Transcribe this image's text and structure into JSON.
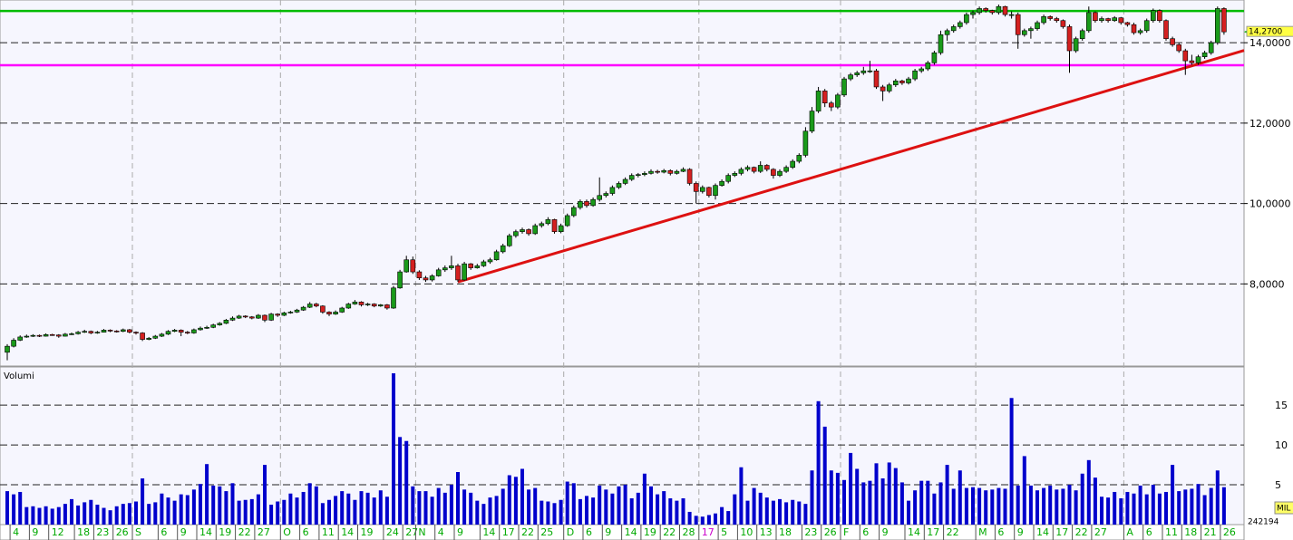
{
  "chart_data": {
    "type": "candlestick",
    "up_color": "#1a9a1a",
    "down_color": "#d42020",
    "ylim": [
      5.98,
      14.95
    ],
    "yticks": [
      {
        "value": 8,
        "label": "8,0000"
      },
      {
        "value": 10,
        "label": "10,0000"
      },
      {
        "value": 12,
        "label": "12,0000"
      },
      {
        "value": 14,
        "label": "14,0000"
      }
    ],
    "grid": true,
    "last_price": {
      "value": 14.27,
      "label": "14,2700"
    },
    "hlines": [
      {
        "value": 14.79,
        "color": "#00bb00"
      },
      {
        "value": 13.44,
        "color": "#ff00ff"
      }
    ],
    "trendline": {
      "color": "#dd1111",
      "from": {
        "index": 70,
        "value": 8.05
      },
      "to": {
        "index": 189,
        "value": 13.66
      }
    },
    "month_marks": [
      20,
      43,
      64,
      87,
      108,
      130,
      151,
      174
    ],
    "year_mark": 108,
    "label_color": "#00aa00",
    "year_color": "#cc00cc",
    "categories": [
      null,
      "4",
      null,
      null,
      "9",
      null,
      null,
      "12",
      null,
      null,
      null,
      "18",
      null,
      null,
      "23",
      null,
      null,
      "26",
      null,
      null,
      "S",
      null,
      null,
      null,
      "6",
      null,
      null,
      "9",
      null,
      null,
      "14",
      null,
      null,
      "19",
      null,
      null,
      "22",
      null,
      null,
      "27",
      null,
      null,
      null,
      "O",
      null,
      null,
      "6",
      null,
      null,
      "11",
      null,
      null,
      "14",
      null,
      null,
      "19",
      null,
      null,
      null,
      "24",
      null,
      null,
      "27",
      null,
      "N",
      null,
      null,
      "4",
      null,
      null,
      "9",
      null,
      null,
      null,
      "14",
      null,
      null,
      "17",
      null,
      null,
      "22",
      null,
      null,
      "25",
      null,
      null,
      null,
      "D",
      null,
      null,
      "6",
      null,
      null,
      "9",
      null,
      null,
      "14",
      null,
      null,
      "19",
      null,
      null,
      "22",
      null,
      null,
      "28",
      null,
      null,
      "17",
      null,
      null,
      "5",
      null,
      null,
      "10",
      null,
      null,
      "13",
      null,
      null,
      "18",
      null,
      null,
      null,
      "23",
      null,
      null,
      "26",
      null,
      null,
      "F",
      null,
      null,
      "6",
      null,
      null,
      "9",
      null,
      null,
      null,
      "14",
      null,
      null,
      "17",
      null,
      null,
      "22",
      null,
      null,
      null,
      null,
      "M",
      null,
      null,
      "6",
      null,
      null,
      "9",
      null,
      null,
      "14",
      null,
      null,
      "17",
      null,
      null,
      "22",
      null,
      null,
      "27",
      null,
      null,
      null,
      null,
      "A",
      null,
      null,
      "6",
      null,
      null,
      "11",
      null,
      null,
      "18",
      null,
      null,
      "21",
      null,
      null,
      "26"
    ],
    "candles": [
      [
        6.3,
        6.5,
        6.1,
        6.45
      ],
      [
        6.45,
        6.65,
        6.42,
        6.6
      ],
      [
        6.6,
        6.72,
        6.58,
        6.68
      ],
      [
        6.68,
        6.74,
        6.66,
        6.7
      ],
      [
        6.7,
        6.75,
        6.68,
        6.72
      ],
      [
        6.72,
        6.74,
        6.68,
        6.7
      ],
      [
        6.7,
        6.77,
        6.69,
        6.74
      ],
      [
        6.74,
        6.76,
        6.71,
        6.73
      ],
      [
        6.73,
        6.75,
        6.66,
        6.7
      ],
      [
        6.7,
        6.78,
        6.69,
        6.75
      ],
      [
        6.75,
        6.79,
        6.73,
        6.76
      ],
      [
        6.76,
        6.83,
        6.74,
        6.8
      ],
      [
        6.8,
        6.86,
        6.78,
        6.82
      ],
      [
        6.82,
        6.84,
        6.75,
        6.78
      ],
      [
        6.78,
        6.83,
        6.76,
        6.8
      ],
      [
        6.8,
        6.88,
        6.79,
        6.85
      ],
      [
        6.85,
        6.87,
        6.8,
        6.83
      ],
      [
        6.83,
        6.85,
        6.79,
        6.82
      ],
      [
        6.82,
        6.89,
        6.8,
        6.86
      ],
      [
        6.86,
        6.88,
        6.77,
        6.8
      ],
      [
        6.8,
        6.82,
        6.74,
        6.78
      ],
      [
        6.78,
        6.8,
        6.58,
        6.62
      ],
      [
        6.62,
        6.68,
        6.6,
        6.65
      ],
      [
        6.65,
        6.73,
        6.63,
        6.7
      ],
      [
        6.7,
        6.78,
        6.68,
        6.75
      ],
      [
        6.75,
        6.85,
        6.73,
        6.82
      ],
      [
        6.82,
        6.88,
        6.8,
        6.85
      ],
      [
        6.85,
        6.87,
        6.7,
        6.8
      ],
      [
        6.8,
        6.83,
        6.75,
        6.78
      ],
      [
        6.78,
        6.89,
        6.76,
        6.86
      ],
      [
        6.86,
        6.94,
        6.84,
        6.9
      ],
      [
        6.9,
        6.96,
        6.88,
        6.92
      ],
      [
        6.92,
        7.01,
        6.9,
        6.98
      ],
      [
        6.98,
        7.05,
        6.96,
        7.02
      ],
      [
        7.02,
        7.13,
        7.0,
        7.1
      ],
      [
        7.1,
        7.19,
        7.08,
        7.15
      ],
      [
        7.15,
        7.23,
        7.13,
        7.2
      ],
      [
        7.2,
        7.22,
        7.15,
        7.18
      ],
      [
        7.18,
        7.2,
        7.12,
        7.15
      ],
      [
        7.15,
        7.25,
        7.13,
        7.22
      ],
      [
        7.22,
        7.24,
        7.05,
        7.1
      ],
      [
        7.1,
        7.28,
        7.08,
        7.25
      ],
      [
        7.25,
        7.27,
        7.18,
        7.22
      ],
      [
        7.22,
        7.31,
        7.2,
        7.28
      ],
      [
        7.28,
        7.33,
        7.26,
        7.3
      ],
      [
        7.3,
        7.38,
        7.28,
        7.35
      ],
      [
        7.35,
        7.45,
        7.33,
        7.42
      ],
      [
        7.42,
        7.55,
        7.4,
        7.5
      ],
      [
        7.5,
        7.53,
        7.42,
        7.45
      ],
      [
        7.45,
        7.47,
        7.26,
        7.3
      ],
      [
        7.3,
        7.32,
        7.2,
        7.25
      ],
      [
        7.25,
        7.34,
        7.23,
        7.3
      ],
      [
        7.3,
        7.43,
        7.28,
        7.4
      ],
      [
        7.4,
        7.53,
        7.38,
        7.5
      ],
      [
        7.5,
        7.6,
        7.48,
        7.55
      ],
      [
        7.55,
        7.57,
        7.44,
        7.48
      ],
      [
        7.48,
        7.53,
        7.45,
        7.5
      ],
      [
        7.5,
        7.52,
        7.42,
        7.45
      ],
      [
        7.45,
        7.5,
        7.43,
        7.48
      ],
      [
        7.48,
        7.5,
        7.36,
        7.4
      ],
      [
        7.4,
        7.95,
        7.38,
        7.9
      ],
      [
        7.9,
        8.35,
        7.88,
        8.3
      ],
      [
        8.3,
        8.7,
        8.28,
        8.6
      ],
      [
        8.6,
        8.68,
        8.25,
        8.3
      ],
      [
        8.3,
        8.34,
        8.1,
        8.15
      ],
      [
        8.15,
        8.2,
        8.05,
        8.1
      ],
      [
        8.1,
        8.24,
        8.06,
        8.2
      ],
      [
        8.2,
        8.4,
        8.18,
        8.35
      ],
      [
        8.35,
        8.46,
        8.3,
        8.4
      ],
      [
        8.4,
        8.7,
        8.35,
        8.45
      ],
      [
        8.45,
        8.5,
        8.05,
        8.1
      ],
      [
        8.1,
        8.55,
        8.08,
        8.5
      ],
      [
        8.5,
        8.52,
        8.35,
        8.4
      ],
      [
        8.4,
        8.5,
        8.38,
        8.45
      ],
      [
        8.45,
        8.6,
        8.42,
        8.55
      ],
      [
        8.55,
        8.65,
        8.5,
        8.6
      ],
      [
        8.6,
        8.85,
        8.58,
        8.8
      ],
      [
        8.8,
        9.0,
        8.76,
        8.95
      ],
      [
        8.95,
        9.25,
        8.92,
        9.2
      ],
      [
        9.2,
        9.35,
        9.15,
        9.3
      ],
      [
        9.3,
        9.4,
        9.25,
        9.35
      ],
      [
        9.35,
        9.38,
        9.2,
        9.25
      ],
      [
        9.25,
        9.5,
        9.22,
        9.45
      ],
      [
        9.45,
        9.55,
        9.4,
        9.5
      ],
      [
        9.5,
        9.66,
        9.46,
        9.6
      ],
      [
        9.6,
        9.62,
        9.25,
        9.3
      ],
      [
        9.3,
        9.5,
        9.26,
        9.45
      ],
      [
        9.45,
        9.75,
        9.42,
        9.7
      ],
      [
        9.7,
        9.95,
        9.66,
        9.9
      ],
      [
        9.9,
        10.1,
        9.85,
        10.05
      ],
      [
        10.05,
        10.1,
        9.9,
        9.95
      ],
      [
        9.95,
        10.15,
        9.92,
        10.1
      ],
      [
        10.1,
        10.65,
        10.05,
        10.2
      ],
      [
        10.2,
        10.3,
        10.15,
        10.25
      ],
      [
        10.25,
        10.45,
        10.2,
        10.4
      ],
      [
        10.4,
        10.55,
        10.36,
        10.5
      ],
      [
        10.5,
        10.65,
        10.46,
        10.6
      ],
      [
        10.6,
        10.75,
        10.56,
        10.7
      ],
      [
        10.7,
        10.76,
        10.65,
        10.72
      ],
      [
        10.72,
        10.8,
        10.68,
        10.75
      ],
      [
        10.75,
        10.85,
        10.72,
        10.8
      ],
      [
        10.8,
        10.84,
        10.74,
        10.78
      ],
      [
        10.78,
        10.86,
        10.75,
        10.82
      ],
      [
        10.82,
        10.85,
        10.7,
        10.75
      ],
      [
        10.75,
        10.84,
        10.72,
        10.8
      ],
      [
        10.8,
        10.9,
        10.78,
        10.85
      ],
      [
        10.85,
        10.88,
        10.45,
        10.5
      ],
      [
        10.5,
        10.55,
        10.0,
        10.3
      ],
      [
        10.3,
        10.45,
        10.25,
        10.4
      ],
      [
        10.4,
        10.42,
        10.15,
        10.2
      ],
      [
        10.2,
        10.5,
        10.1,
        10.45
      ],
      [
        10.45,
        10.6,
        10.42,
        10.55
      ],
      [
        10.55,
        10.75,
        10.5,
        10.7
      ],
      [
        10.7,
        10.8,
        10.66,
        10.75
      ],
      [
        10.75,
        10.9,
        10.7,
        10.85
      ],
      [
        10.85,
        10.95,
        10.8,
        10.9
      ],
      [
        10.9,
        10.92,
        10.75,
        10.8
      ],
      [
        10.8,
        11.05,
        10.76,
        10.95
      ],
      [
        10.95,
        10.98,
        10.8,
        10.85
      ],
      [
        10.85,
        10.88,
        10.62,
        10.7
      ],
      [
        10.7,
        10.85,
        10.66,
        10.8
      ],
      [
        10.8,
        10.95,
        10.76,
        10.9
      ],
      [
        10.9,
        11.1,
        10.86,
        11.05
      ],
      [
        11.05,
        11.25,
        11.0,
        11.2
      ],
      [
        11.2,
        11.9,
        11.15,
        11.8
      ],
      [
        11.8,
        12.4,
        11.75,
        12.3
      ],
      [
        12.3,
        12.9,
        12.25,
        12.8
      ],
      [
        12.8,
        12.85,
        12.4,
        12.5
      ],
      [
        12.5,
        12.55,
        12.3,
        12.4
      ],
      [
        12.4,
        12.75,
        12.35,
        12.7
      ],
      [
        12.7,
        13.15,
        12.65,
        13.1
      ],
      [
        13.1,
        13.25,
        13.05,
        13.2
      ],
      [
        13.2,
        13.3,
        13.15,
        13.25
      ],
      [
        13.25,
        13.4,
        13.2,
        13.3
      ],
      [
        13.3,
        13.55,
        13.25,
        13.3
      ],
      [
        13.3,
        13.35,
        12.85,
        12.9
      ],
      [
        12.9,
        12.95,
        12.55,
        12.8
      ],
      [
        12.8,
        13.0,
        12.75,
        12.95
      ],
      [
        12.95,
        13.1,
        12.9,
        13.05
      ],
      [
        13.05,
        13.08,
        12.95,
        13.0
      ],
      [
        13.0,
        13.15,
        12.96,
        13.1
      ],
      [
        13.1,
        13.35,
        13.05,
        13.3
      ],
      [
        13.3,
        13.4,
        13.25,
        13.35
      ],
      [
        13.35,
        13.55,
        13.3,
        13.5
      ],
      [
        13.5,
        13.8,
        13.45,
        13.75
      ],
      [
        13.75,
        14.3,
        13.7,
        14.2
      ],
      [
        14.2,
        14.35,
        14.05,
        14.3
      ],
      [
        14.3,
        14.45,
        14.25,
        14.4
      ],
      [
        14.4,
        14.55,
        14.35,
        14.5
      ],
      [
        14.5,
        14.75,
        14.45,
        14.7
      ],
      [
        14.7,
        14.8,
        14.6,
        14.75
      ],
      [
        14.75,
        14.9,
        14.7,
        14.85
      ],
      [
        14.85,
        14.88,
        14.75,
        14.8
      ],
      [
        14.8,
        14.82,
        14.7,
        14.75
      ],
      [
        14.75,
        14.95,
        14.7,
        14.9
      ],
      [
        14.9,
        14.92,
        14.65,
        14.7
      ],
      [
        14.7,
        14.78,
        14.6,
        14.7
      ],
      [
        14.7,
        14.75,
        13.85,
        14.2
      ],
      [
        14.2,
        14.35,
        14.15,
        14.3
      ],
      [
        14.3,
        14.4,
        14.1,
        14.35
      ],
      [
        14.35,
        14.55,
        14.3,
        14.5
      ],
      [
        14.5,
        14.7,
        14.45,
        14.65
      ],
      [
        14.65,
        14.68,
        14.55,
        14.6
      ],
      [
        14.6,
        14.64,
        14.5,
        14.55
      ],
      [
        14.55,
        14.58,
        14.35,
        14.4
      ],
      [
        14.4,
        14.45,
        13.25,
        13.8
      ],
      [
        13.8,
        14.15,
        13.75,
        14.1
      ],
      [
        14.1,
        14.35,
        14.05,
        14.3
      ],
      [
        14.3,
        14.9,
        14.25,
        14.75
      ],
      [
        14.75,
        14.78,
        14.5,
        14.55
      ],
      [
        14.55,
        14.65,
        14.5,
        14.6
      ],
      [
        14.6,
        14.62,
        14.5,
        14.55
      ],
      [
        14.55,
        14.66,
        14.52,
        14.62
      ],
      [
        14.62,
        14.64,
        14.45,
        14.5
      ],
      [
        14.5,
        14.52,
        14.4,
        14.45
      ],
      [
        14.45,
        14.5,
        14.2,
        14.25
      ],
      [
        14.25,
        14.35,
        14.2,
        14.3
      ],
      [
        14.3,
        14.6,
        14.25,
        14.55
      ],
      [
        14.55,
        14.85,
        14.5,
        14.8
      ],
      [
        14.8,
        14.83,
        14.5,
        14.55
      ],
      [
        14.55,
        14.58,
        14.05,
        14.1
      ],
      [
        14.1,
        14.15,
        13.9,
        13.95
      ],
      [
        13.95,
        14.0,
        13.75,
        13.8
      ],
      [
        13.8,
        13.85,
        13.2,
        13.55
      ],
      [
        13.55,
        13.7,
        13.45,
        13.5
      ],
      [
        13.5,
        13.7,
        13.45,
        13.65
      ],
      [
        13.65,
        13.8,
        13.6,
        13.75
      ],
      [
        13.75,
        14.05,
        13.7,
        14.0
      ],
      [
        14.0,
        14.9,
        13.95,
        14.85
      ],
      [
        14.85,
        14.88,
        14.2,
        14.27
      ]
    ],
    "volume": {
      "name": "Volumi",
      "color": "#0000cc",
      "ylim": [
        0,
        19.8
      ],
      "yticks": [
        5,
        10,
        15
      ],
      "unit": "MIL",
      "last": 242194,
      "values": [
        4.2,
        3.8,
        4.1,
        2.2,
        2.3,
        2.1,
        2.3,
        2.0,
        2.2,
        2.6,
        3.2,
        2.4,
        2.8,
        3.1,
        2.5,
        2.1,
        1.8,
        2.3,
        2.6,
        2.7,
        2.9,
        5.8,
        2.6,
        2.8,
        3.9,
        3.4,
        3.0,
        3.8,
        3.7,
        4.4,
        5.1,
        7.6,
        4.9,
        4.8,
        4.2,
        5.2,
        3.0,
        3.1,
        3.2,
        3.8,
        7.5,
        2.5,
        2.9,
        3.1,
        3.9,
        3.4,
        4.1,
        5.2,
        4.8,
        2.7,
        3.1,
        3.6,
        4.2,
        3.9,
        3.1,
        4.2,
        4.0,
        3.4,
        4.3,
        3.5,
        19.0,
        11.0,
        10.5,
        4.8,
        4.2,
        4.2,
        3.5,
        4.6,
        4.0,
        5.0,
        6.6,
        4.4,
        4.0,
        3.0,
        2.6,
        3.4,
        3.6,
        4.5,
        6.2,
        6.0,
        7.0,
        4.4,
        4.6,
        3.0,
        2.9,
        2.7,
        3.1,
        5.4,
        5.2,
        3.2,
        3.6,
        3.4,
        4.9,
        4.4,
        3.9,
        4.8,
        5.0,
        3.3,
        4.0,
        6.4,
        4.8,
        3.8,
        4.2,
        3.3,
        3.0,
        3.3,
        1.6,
        1.1,
        1.0,
        1.2,
        1.4,
        2.2,
        1.7,
        3.8,
        7.2,
        3.0,
        4.6,
        4.0,
        3.4,
        3.0,
        3.2,
        2.8,
        3.1,
        2.9,
        2.6,
        6.8,
        15.5,
        12.3,
        6.8,
        6.5,
        5.6,
        9.0,
        7.0,
        5.3,
        5.5,
        7.7,
        5.8,
        7.8,
        7.1,
        5.3,
        3.0,
        4.3,
        5.5,
        5.5,
        3.9,
        5.3,
        7.5,
        4.5,
        6.8,
        4.6,
        4.7,
        4.6,
        4.3,
        4.4,
        4.6,
        4.5,
        15.9,
        4.9,
        8.6,
        4.9,
        4.3,
        4.6,
        4.9,
        4.4,
        4.5,
        5.0,
        4.3,
        6.4,
        8.1,
        5.9,
        3.5,
        3.4,
        4.1,
        3.3,
        4.1,
        3.9,
        4.9,
        3.8,
        5.0,
        3.9,
        4.1,
        7.5,
        4.2,
        4.4,
        4.5,
        5.1,
        3.7,
        4.6,
        6.8,
        4.7
      ]
    }
  }
}
